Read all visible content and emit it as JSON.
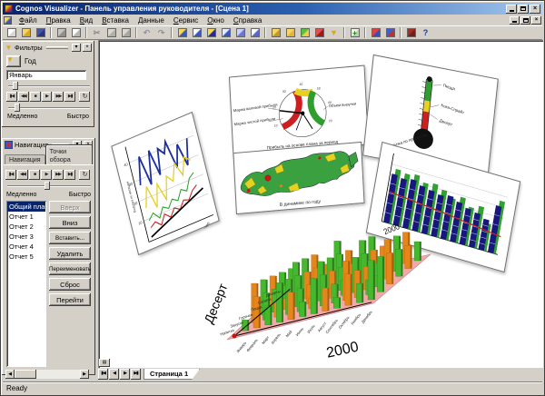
{
  "window": {
    "title": "Cognos Visualizer - Панель управления руководителя - [Сцена 1]"
  },
  "menu": {
    "items": [
      "Файл",
      "Правка",
      "Вид",
      "Вставка",
      "Данные",
      "Сервис",
      "Окно",
      "Справка"
    ]
  },
  "toolbar": {
    "icons": [
      {
        "n": "new-document-icon",
        "b1": "#ffffff",
        "b2": "#d8d8d0"
      },
      {
        "n": "open-folder-icon",
        "b1": "#f6d56a",
        "b2": "#d8a820"
      },
      {
        "n": "save-icon",
        "b1": "#4a55a8",
        "b2": "#2a3580"
      },
      {
        "n": "print-icon",
        "sep": true,
        "b1": "#c8c8c0",
        "b2": "#909088"
      },
      {
        "n": "print-preview-icon",
        "b1": "#ffffff",
        "b2": "#b8b8b0"
      },
      {
        "n": "cut-icon",
        "sep": true,
        "g": "✂",
        "c": "#8a8a82"
      },
      {
        "n": "copy-icon",
        "b1": "#d8d8d0",
        "b2": "#b0b0a8"
      },
      {
        "n": "paste-icon",
        "b1": "#d8d8d0",
        "b2": "#a8a8a0"
      },
      {
        "n": "undo-icon",
        "sep": true,
        "g": "↶",
        "c": "#9090a8"
      },
      {
        "n": "redo-icon",
        "g": "↷",
        "c": "#9090a8"
      },
      {
        "n": "scene-filter-icon",
        "sep": true,
        "b1": "#f8d850",
        "b2": "#3858c0"
      },
      {
        "n": "scene-layout-icon",
        "b1": "#ffffff",
        "b2": "#3858c0"
      },
      {
        "n": "frame-select-icon",
        "b1": "#f8d850",
        "b2": "#2828a0"
      },
      {
        "n": "frame-grid-icon",
        "b1": "#e8e8ff",
        "b2": "#3858c0"
      },
      {
        "n": "frame-lock-icon",
        "b1": "#d0d0ff",
        "b2": "#6878d0"
      },
      {
        "n": "frame-new-icon",
        "b1": "#ffffff",
        "b2": "#5868c8"
      },
      {
        "n": "folder-up-icon",
        "sep": true,
        "b1": "#f6d56a",
        "b2": "#c89818"
      },
      {
        "n": "folder-open-icon",
        "b1": "#f6d56a",
        "b2": "#e0b830"
      },
      {
        "n": "chart-green-icon",
        "b1": "#58c040",
        "b2": "#f0d040"
      },
      {
        "n": "chart-bars-icon",
        "b1": "#e05050",
        "b2": "#a01818"
      },
      {
        "n": "filter-funnel-icon",
        "g": "▼",
        "c": "#d8a820"
      },
      {
        "n": "add-frame-icon",
        "sep": true,
        "g": "+",
        "c": "#0a8a0a",
        "b1": "#f0f0e8",
        "b2": "#c8c8c0"
      },
      {
        "n": "pie-chart-icon",
        "sep": true,
        "b1": "#e04040",
        "b2": "#3050c0"
      },
      {
        "n": "map-window-icon",
        "b1": "#4060c8",
        "b2": "#c03030"
      },
      {
        "n": "help-book-icon",
        "sep": true,
        "b1": "#a03028",
        "b2": "#702018"
      },
      {
        "n": "help-pointer-icon",
        "g": "?",
        "c": "#203890"
      }
    ]
  },
  "icons": {
    "close": "×",
    "rollup": "▾",
    "splitter": "▤"
  },
  "media_buttons": [
    "▮◀",
    "◀◀",
    "■",
    "▶",
    "▶▶",
    "▶▮",
    "↻"
  ],
  "filters": {
    "title": "Фильтры",
    "field_label": "Год",
    "field_value": "Январь",
    "slow": "Медленно",
    "fast": "Быстро"
  },
  "navigation": {
    "title": "Навигация",
    "tabs": [
      "Навигация",
      "Точки обзора"
    ],
    "slow": "Медленно",
    "fast": "Быстро",
    "items": [
      "Общий план",
      "Отчет 1",
      "Отчет 2",
      "Отчет 3",
      "Отчет 4",
      "Отчет 5"
    ],
    "selected_index": 0,
    "buttons": [
      {
        "label": "Вверх",
        "disabled": true
      },
      {
        "label": "Вниз"
      },
      {
        "label": "Вставить..."
      },
      {
        "label": "Удалить"
      },
      {
        "label": "Переименовать"
      },
      {
        "label": "Сброс"
      },
      {
        "label": "Перейти"
      }
    ]
  },
  "scene": {
    "line_chart": {
      "yticks": [
        "40",
        "30",
        "20",
        "10"
      ],
      "x_label": "2000",
      "axis_caption": "Выручка по месяцам"
    },
    "gauge": {
      "ticks": [
        "10",
        "20",
        "30",
        "40",
        "50",
        "60",
        "70"
      ],
      "label_left_top": "Маржа валовой прибыли",
      "label_left_bottom": "Маржа чистой прибыли",
      "label_right": "Объем выручки",
      "caption": "Прибыль на основе плана за период"
    },
    "map": {
      "caption": "В динамике по году"
    },
    "thermometer": {
      "labels": [
        "Пицца",
        "Кока-Спрайт",
        "Десерт"
      ],
      "caption": "Выручка по продуктам"
    },
    "bar_chart": {
      "x_label": "2000",
      "blue": [
        54,
        52,
        54,
        50,
        48,
        46,
        48,
        44,
        40,
        38,
        34,
        52
      ],
      "green": [
        60,
        58,
        60,
        54,
        56,
        52,
        46,
        50,
        42,
        46,
        30,
        58
      ],
      "line": "16,50 80,56 146,64",
      "blue_color": "#17177d",
      "green_color": "#2fa32f",
      "line_color": "#cc2020"
    },
    "cube": {
      "y_label": "Десерт",
      "x_label": "2000",
      "months": [
        "Январь",
        "Февраль",
        "Март",
        "Апрель",
        "Май",
        "Июнь",
        "Июль",
        "Август",
        "Сентябрь",
        "Октябрь",
        "Ноябрь",
        "Декабрь"
      ],
      "products": [
        "Напитки",
        "Закуски",
        "Горячее",
        "Пицца",
        "Салаты",
        "Десерты"
      ],
      "grid": [
        "GOGGOGGOGOGG",
        "OGOGGOGGOOGG",
        "GGOGOGOGGOGO",
        "OGGOOGGOGGOG",
        "GOGOGGOGOGGO",
        "GGOOGOGGOGOG"
      ],
      "green": "#46b82e",
      "orange": "#e5861a",
      "green_dark": "#2d7a1e",
      "orange_dark": "#a85f0f",
      "plane": "#f09f9f"
    }
  },
  "page_tabs": {
    "buttons": [
      "▮◀",
      "◀",
      "▶",
      "▶▮"
    ],
    "tab": "Страница 1"
  },
  "status": {
    "text": "Ready"
  }
}
